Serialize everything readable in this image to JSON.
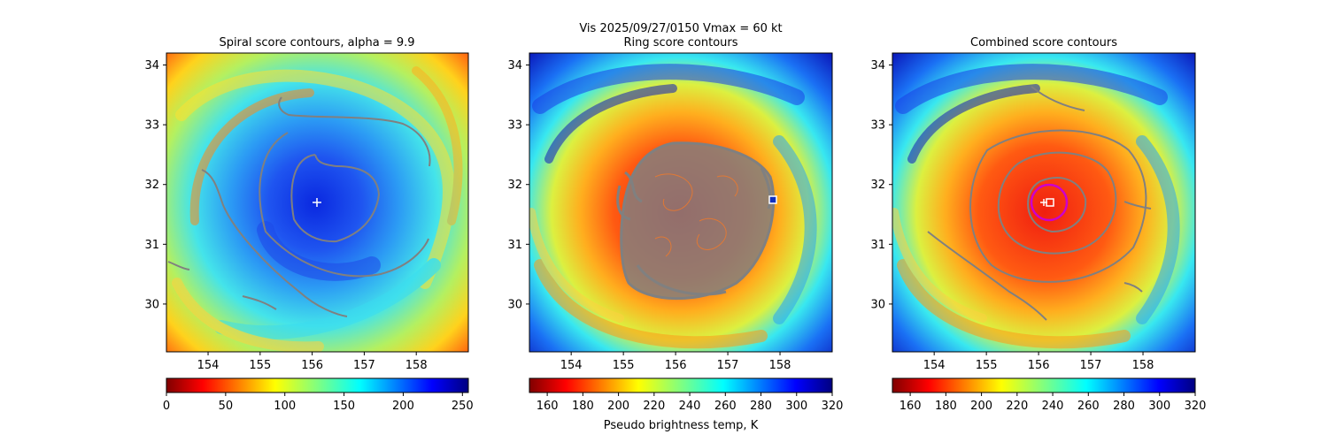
{
  "suptitle": "Vis  2025/09/27/0150    Vmax = 60 kt",
  "colorbar_label": "Pseudo brightness temp, K",
  "chart_data": [
    {
      "type": "heatmap",
      "title": "Spiral score contours, alpha =  9.9",
      "xlim": [
        153.2,
        159.0
      ],
      "ylim": [
        29.2,
        34.2
      ],
      "xticks": [
        154,
        155,
        156,
        157,
        158
      ],
      "yticks": [
        30,
        31,
        32,
        33,
        34
      ],
      "xtick_labels": [
        "154",
        "155",
        "156",
        "157",
        "158"
      ],
      "ytick_labels": [
        "30",
        "31",
        "32",
        "33",
        "34"
      ],
      "center": {
        "lon": 156.0,
        "lat": 31.7
      },
      "colormap": "jet_r",
      "colorbar": {
        "range": [
          0,
          255
        ],
        "ticks": [
          0,
          50,
          100,
          150,
          200,
          250
        ],
        "tick_labels": [
          "0",
          "50",
          "100",
          "150",
          "200",
          "250"
        ]
      },
      "eye_center_value": 230,
      "contour_color": "#808080",
      "marker_color": "#ffffff"
    },
    {
      "type": "heatmap",
      "title": "Ring score contours",
      "xlim": [
        153.2,
        159.0
      ],
      "ylim": [
        29.2,
        34.2
      ],
      "xticks": [
        154,
        155,
        156,
        157,
        158
      ],
      "yticks": [
        30,
        31,
        32,
        33,
        34
      ],
      "xtick_labels": [
        "154",
        "155",
        "156",
        "157",
        "158"
      ],
      "ytick_labels": [
        "30",
        "31",
        "32",
        "33",
        "34"
      ],
      "center": {
        "lon": 157.8,
        "lat": 31.75
      },
      "colormap": "jet_r",
      "colorbar": {
        "range": [
          150,
          320
        ],
        "ticks": [
          160,
          180,
          200,
          220,
          240,
          260,
          280,
          300,
          320
        ],
        "tick_labels": [
          "160",
          "180",
          "200",
          "220",
          "240",
          "260",
          "280",
          "300",
          "320"
        ]
      },
      "contour_color": "#808080",
      "marker_color": "#ffffff"
    },
    {
      "type": "heatmap",
      "title": "Combined score contours",
      "xlim": [
        153.2,
        159.0
      ],
      "ylim": [
        29.2,
        34.2
      ],
      "xticks": [
        154,
        155,
        156,
        157,
        158
      ],
      "yticks": [
        30,
        31,
        32,
        33,
        34
      ],
      "xtick_labels": [
        "154",
        "155",
        "156",
        "157",
        "158"
      ],
      "ytick_labels": [
        "30",
        "31",
        "32",
        "33",
        "34"
      ],
      "center": {
        "lon": 156.1,
        "lat": 31.7
      },
      "colormap": "jet_r",
      "colorbar": {
        "range": [
          150,
          320
        ],
        "ticks": [
          160,
          180,
          200,
          220,
          240,
          260,
          280,
          300,
          320
        ],
        "tick_labels": [
          "160",
          "180",
          "200",
          "220",
          "240",
          "260",
          "280",
          "300",
          "320"
        ]
      },
      "contour_color": "#808080",
      "marker_color": "#ffffff",
      "circle_color": "#cc00cc"
    }
  ]
}
